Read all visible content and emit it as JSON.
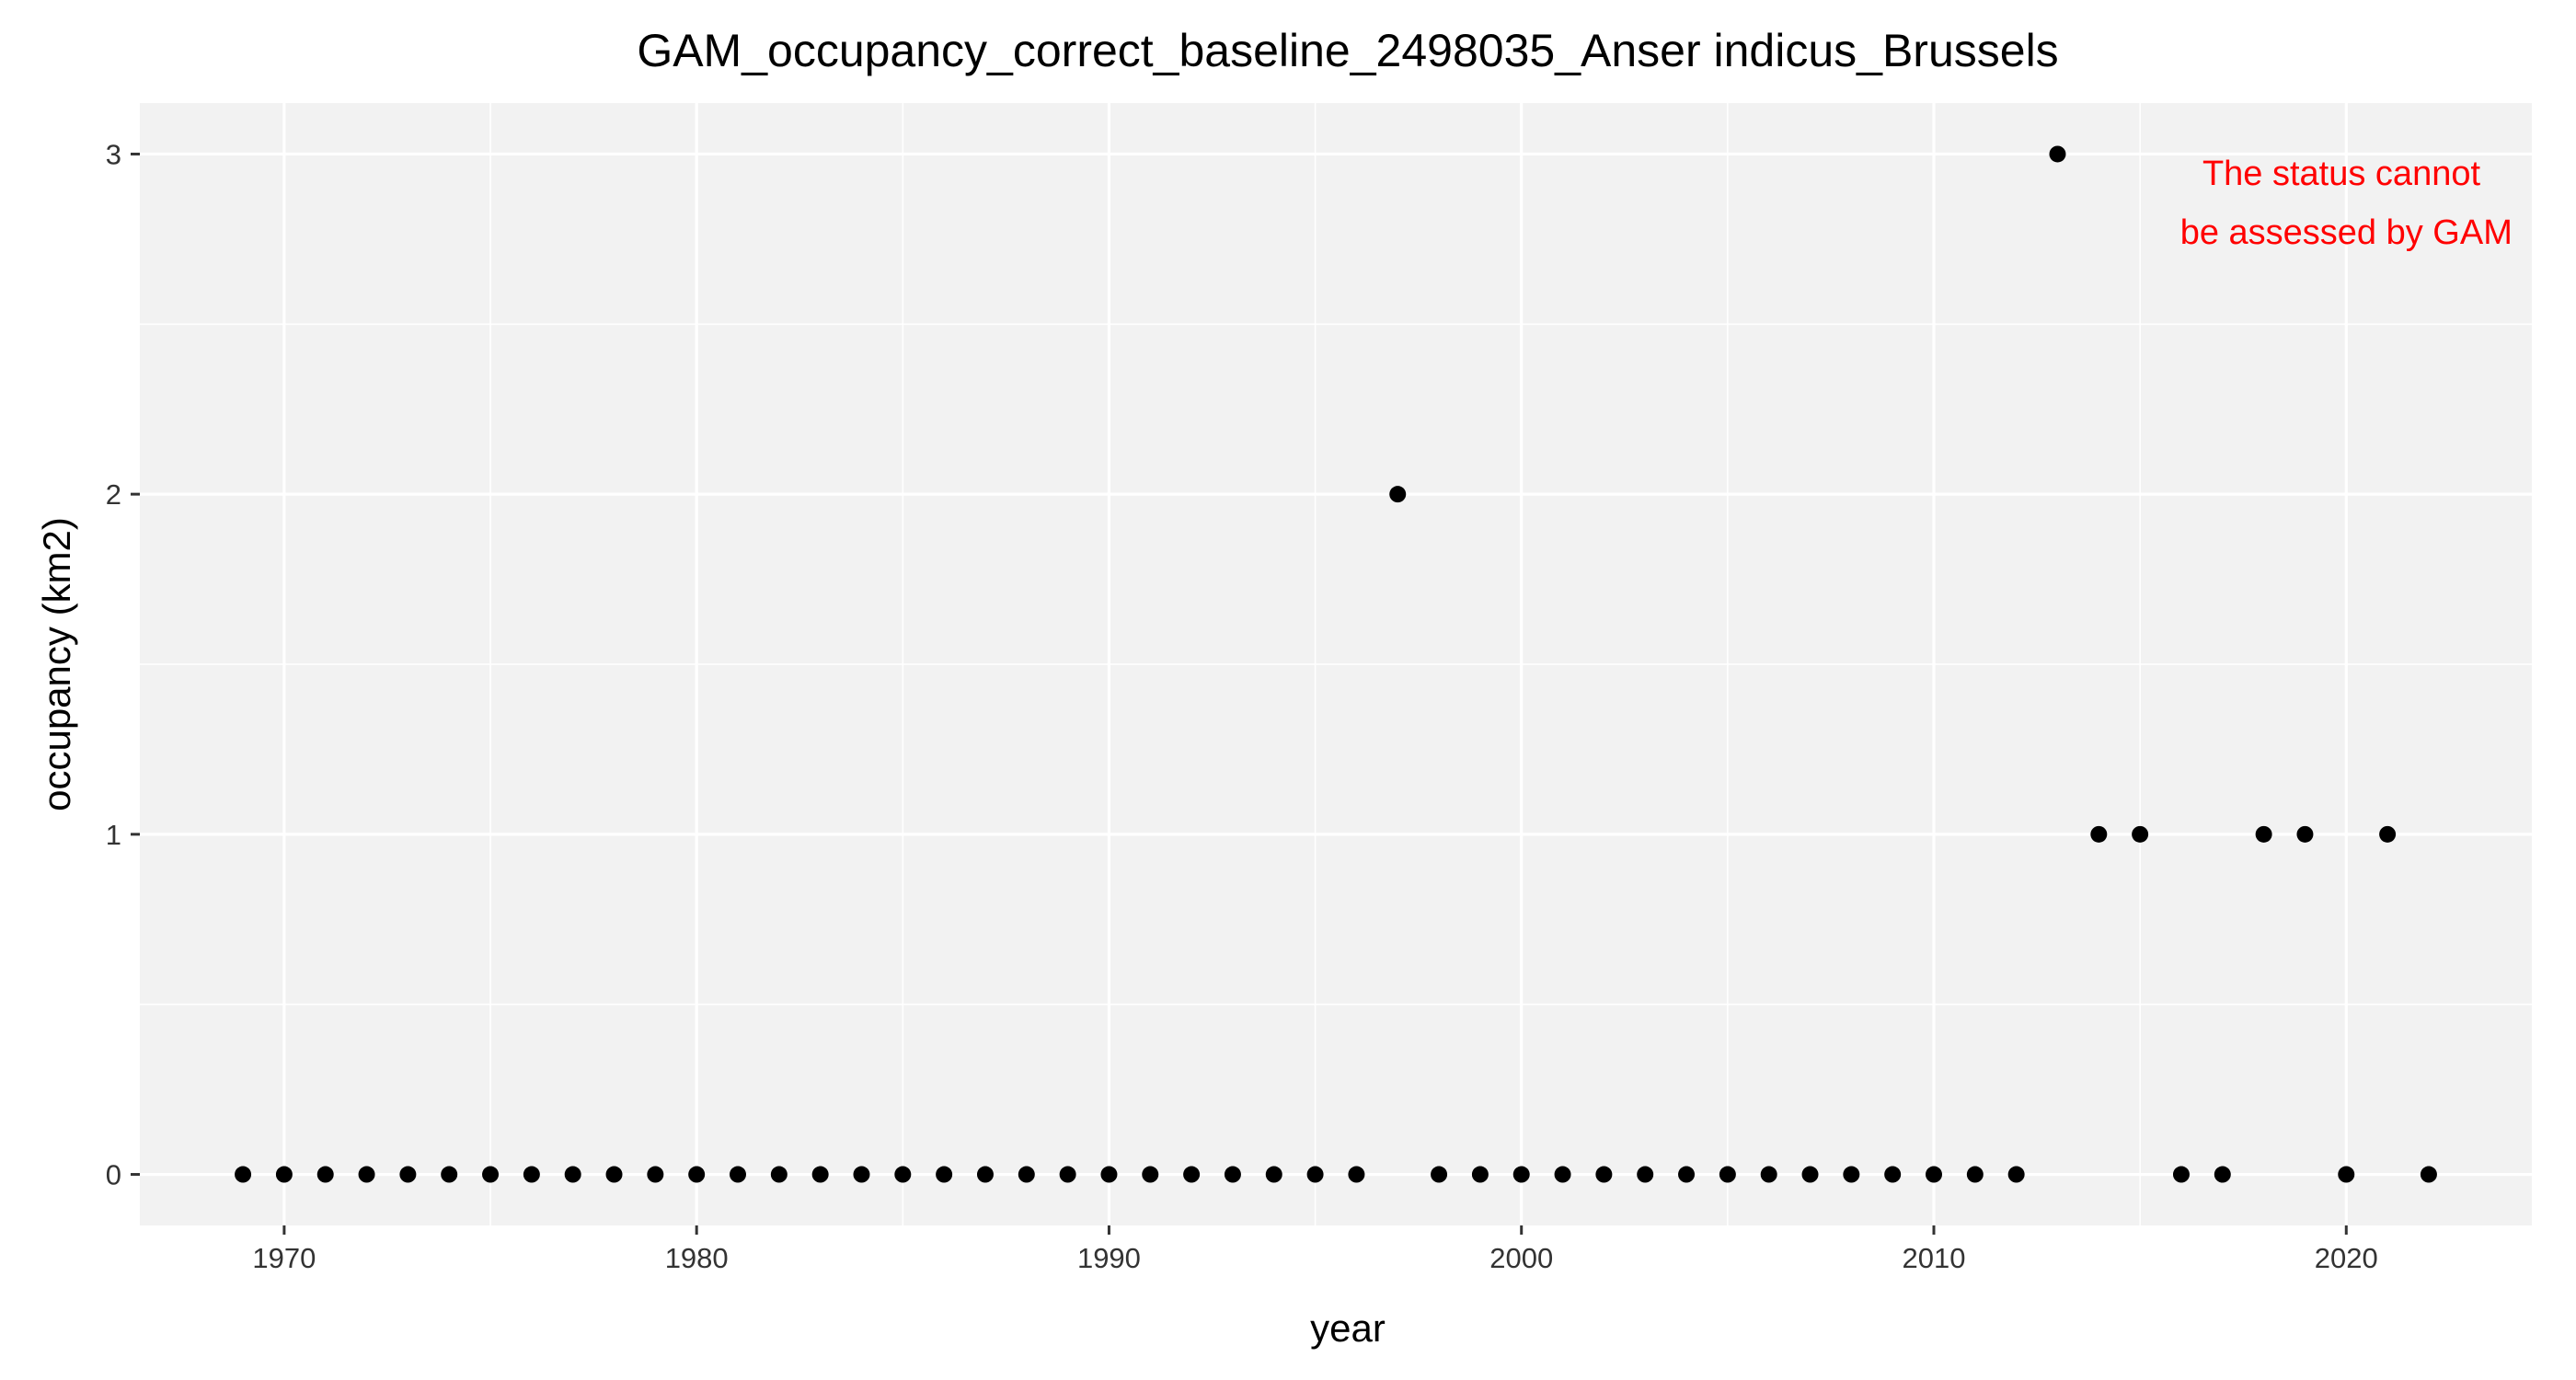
{
  "chart_data": {
    "type": "scatter",
    "title": "GAM_occupancy_correct_baseline_2498035_Anser indicus_Brussels",
    "xlabel": "year",
    "ylabel": "occupancy (km2)",
    "xlim": [
      1966.5,
      2024.5
    ],
    "ylim": [
      -0.15,
      3.15
    ],
    "x_ticks": [
      1970,
      1980,
      1990,
      2000,
      2010,
      2020
    ],
    "y_ticks": [
      0,
      1,
      2,
      3
    ],
    "grid": true,
    "legend": "none",
    "colors": {
      "panel_background": "#f2f2f2",
      "grid": "#ffffff",
      "points": "#000000",
      "annotation": "#ff0000"
    },
    "series": [
      {
        "x": [
          1969,
          1970,
          1971,
          1972,
          1973,
          1974,
          1975,
          1976,
          1977,
          1978,
          1979,
          1980,
          1981,
          1982,
          1983,
          1984,
          1985,
          1986,
          1987,
          1988,
          1989,
          1990,
          1991,
          1992,
          1993,
          1994,
          1995,
          1996,
          1997,
          1998,
          1999,
          2000,
          2001,
          2002,
          2003,
          2004,
          2005,
          2006,
          2007,
          2008,
          2009,
          2010,
          2011,
          2012,
          2013,
          2014,
          2015,
          2016,
          2017,
          2018,
          2019,
          2020,
          2021,
          2022
        ],
        "y": [
          0,
          0,
          0,
          0,
          0,
          0,
          0,
          0,
          0,
          0,
          0,
          0,
          0,
          0,
          0,
          0,
          0,
          0,
          0,
          0,
          0,
          0,
          0,
          0,
          0,
          0,
          0,
          0,
          2,
          0,
          0,
          0,
          0,
          0,
          0,
          0,
          0,
          0,
          0,
          0,
          0,
          0,
          0,
          0,
          3,
          1,
          1,
          0,
          0,
          1,
          1,
          0,
          1,
          0
        ]
      }
    ],
    "annotation": {
      "lines": [
        "The status cannot",
        "be assessed by GAM"
      ],
      "x": 2020,
      "y": 2.85
    }
  }
}
